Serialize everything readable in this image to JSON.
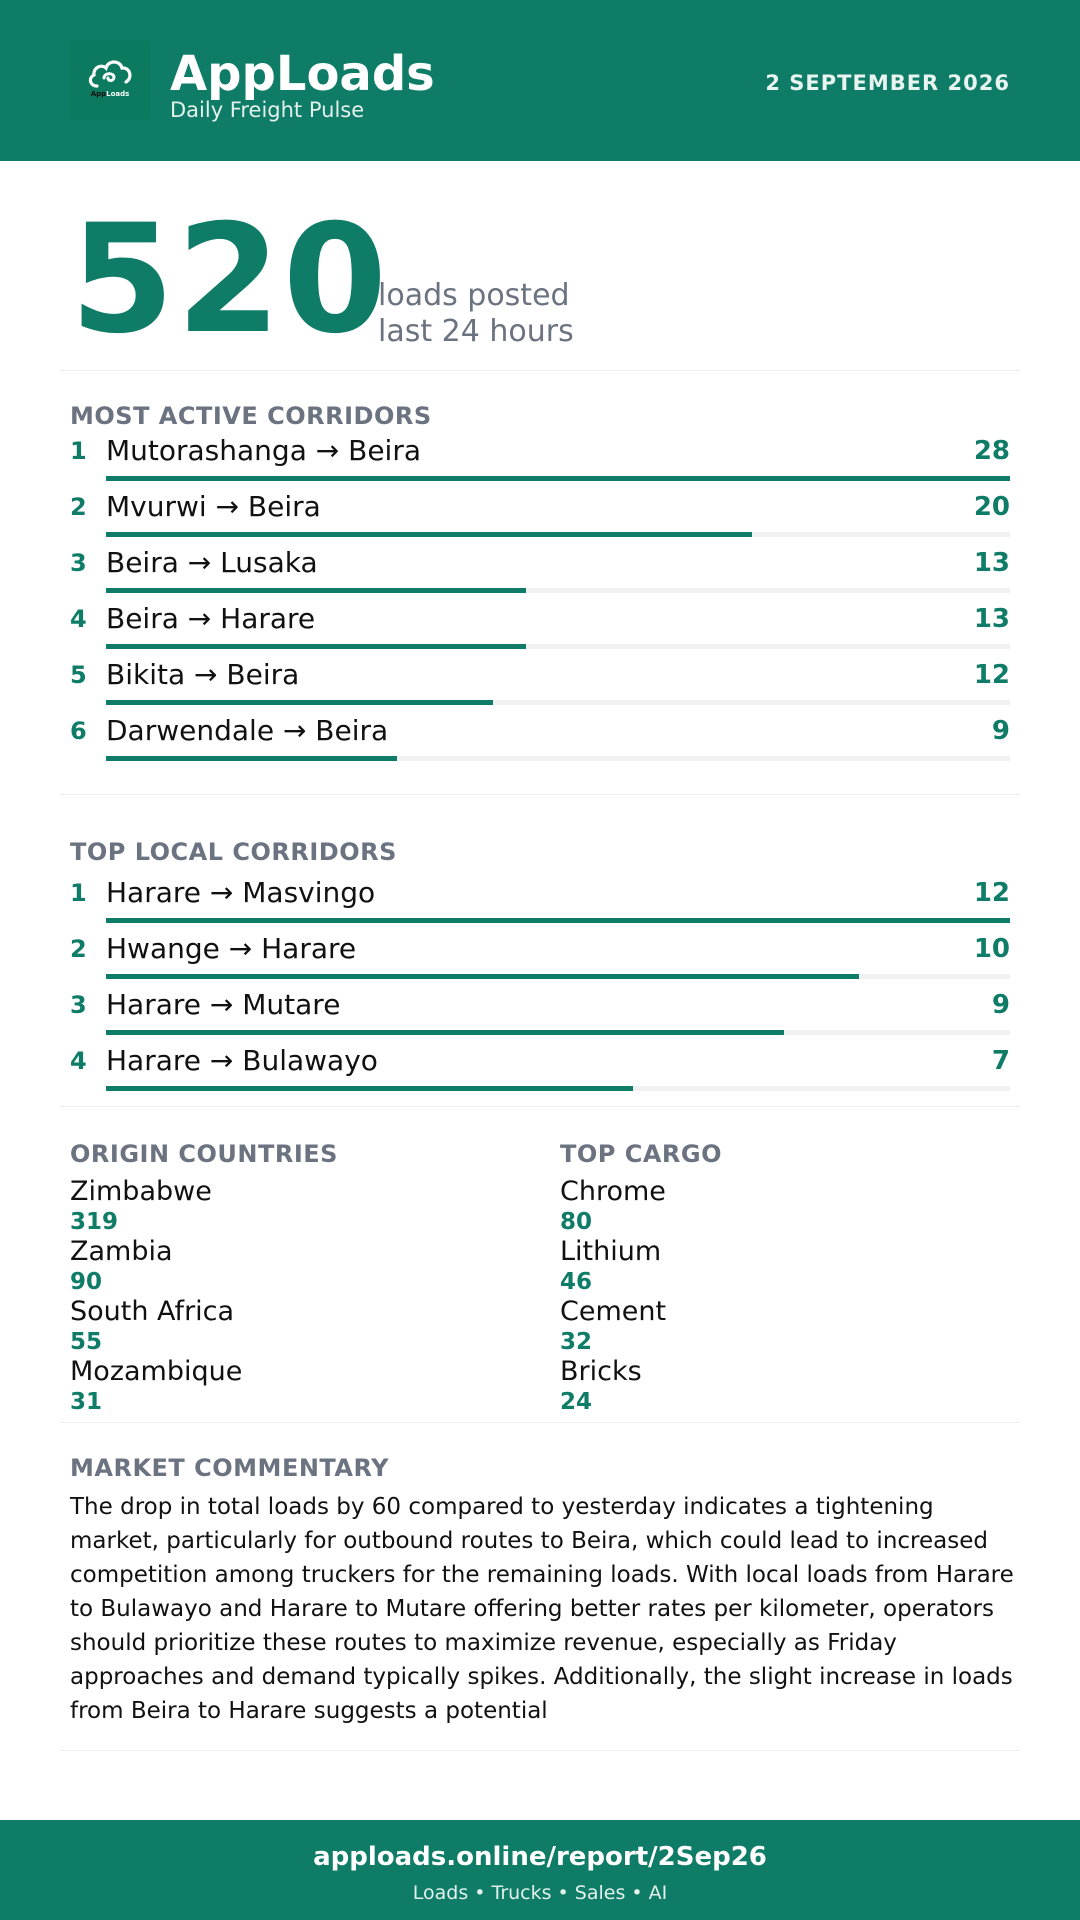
{
  "header": {
    "logo_text_a": "App",
    "logo_text_b": "Loads",
    "brand": "AppLoads",
    "tagline": "Daily Freight Pulse",
    "date": "2 SEPTEMBER 2026"
  },
  "hero": {
    "count": "520",
    "line1": "loads posted",
    "line2": "last 24 hours"
  },
  "active": {
    "title": "MOST ACTIVE CORRIDORS",
    "max": 28,
    "items": [
      {
        "rank": "1",
        "name": "Mutorashanga → Beira",
        "value": 28
      },
      {
        "rank": "2",
        "name": "Mvurwi → Beira",
        "value": 20
      },
      {
        "rank": "3",
        "name": "Beira → Lusaka",
        "value": 13
      },
      {
        "rank": "4",
        "name": "Beira → Harare",
        "value": 13
      },
      {
        "rank": "5",
        "name": "Bikita → Beira",
        "value": 12
      },
      {
        "rank": "6",
        "name": "Darwendale → Beira",
        "value": 9
      }
    ]
  },
  "local": {
    "title": "TOP LOCAL CORRIDORS",
    "max": 12,
    "items": [
      {
        "rank": "1",
        "name": "Harare → Masvingo",
        "value": 12
      },
      {
        "rank": "2",
        "name": "Hwange → Harare",
        "value": 10
      },
      {
        "rank": "3",
        "name": "Harare → Mutare",
        "value": 9
      },
      {
        "rank": "4",
        "name": "Harare → Bulawayo",
        "value": 7
      }
    ]
  },
  "origin": {
    "title": "ORIGIN COUNTRIES",
    "items": [
      {
        "name": "Zimbabwe",
        "value": "319"
      },
      {
        "name": "Zambia",
        "value": "90"
      },
      {
        "name": "South Africa",
        "value": "55"
      },
      {
        "name": "Mozambique",
        "value": "31"
      }
    ]
  },
  "cargo": {
    "title": "TOP CARGO",
    "items": [
      {
        "name": "Chrome",
        "value": "80"
      },
      {
        "name": "Lithium",
        "value": "46"
      },
      {
        "name": "Cement",
        "value": "32"
      },
      {
        "name": "Bricks",
        "value": "24"
      }
    ]
  },
  "commentary": {
    "title": "MARKET COMMENTARY",
    "text": "The drop in total loads by 60 compared to yesterday indicates a tightening market, particularly for outbound routes to Beira, which could lead to increased competition among truckers for the remaining loads. With local loads from Harare to Bulawayo and Harare to Mutare offering better rates per kilometer, operators should prioritize these routes to maximize revenue, especially as Friday approaches and demand typically spikes. Additionally, the slight increase in loads from Beira to Harare suggests a potential"
  },
  "footer": {
    "url": "apploads.online/report/2Sep26",
    "links": "Loads • Trucks • Sales • AI"
  },
  "colors": {
    "brand_green": "#0e7c66",
    "muted_gray": "#6b7280"
  }
}
